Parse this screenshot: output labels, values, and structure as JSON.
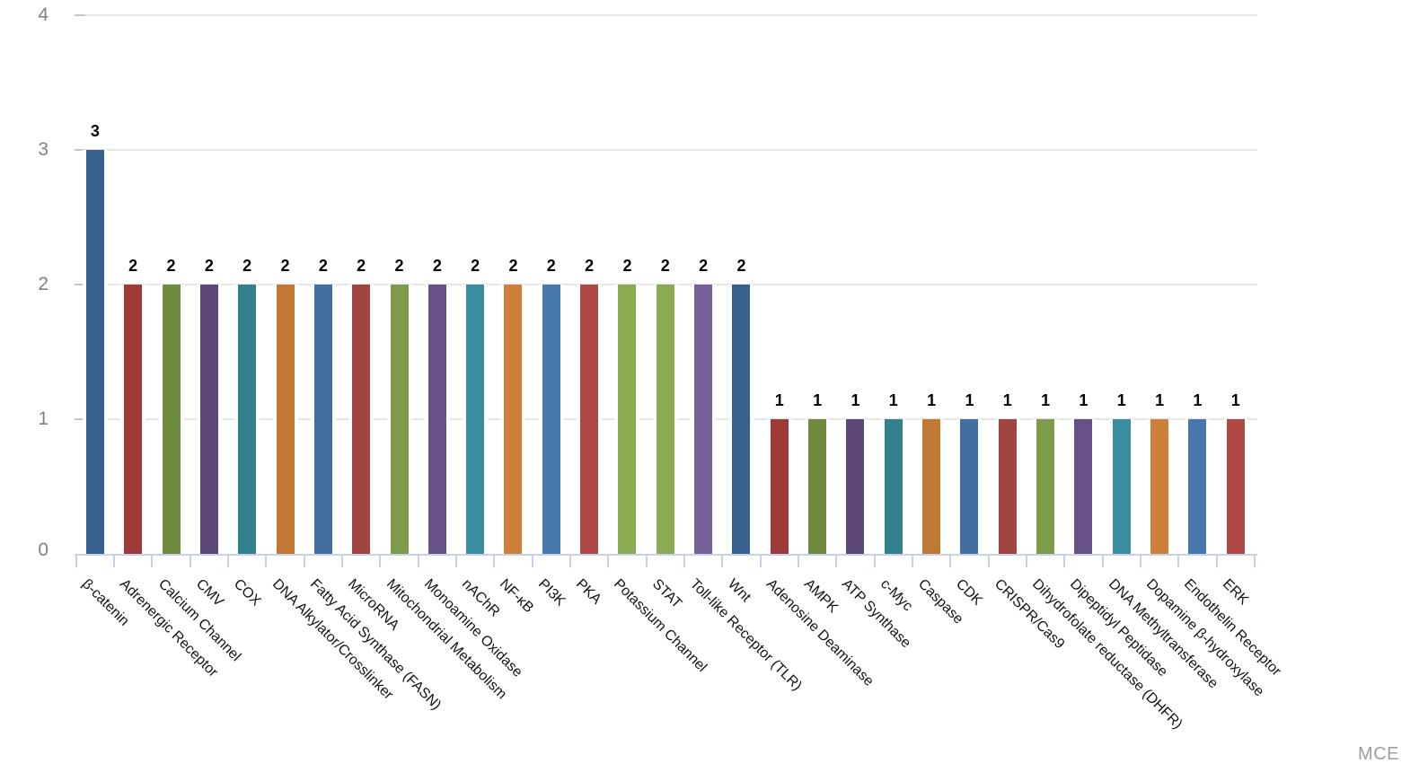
{
  "watermark": "MCE",
  "chart_data": {
    "type": "bar",
    "title": "",
    "xlabel": "",
    "ylabel": "",
    "ylim": [
      0,
      4
    ],
    "yticks": [
      0,
      1,
      2,
      3,
      4
    ],
    "grid": true,
    "legend": "none",
    "categories": [
      "β-catenin",
      "Adrenergic Receptor",
      "Calcium Channel",
      "CMV",
      "COX",
      "DNA Alkylator/Crosslinker",
      "Fatty Acid Synthase (FASN)",
      "MicroRNA",
      "Mitochondrial Metabolism",
      "Monoamine Oxidase",
      "nAChR",
      "NF-κB",
      "PI3K",
      "PKA",
      "Potassium Channel",
      "STAT",
      "Toll-like Receptor (TLR)",
      "Wnt",
      "Adenosine Deaminase",
      "AMPK",
      "ATP Synthase",
      "c-Myc",
      "Caspase",
      "CDK",
      "CRISPR/Cas9",
      "Dihydrofolate reductase (DHFR)",
      "Dipeptidyl Peptidase",
      "DNA Methyltransferase",
      "Dopamine β-hydroxylase",
      "Endothelin Receptor",
      "ERK"
    ],
    "values": [
      3,
      2,
      2,
      2,
      2,
      2,
      2,
      2,
      2,
      2,
      2,
      2,
      2,
      2,
      2,
      2,
      2,
      2,
      1,
      1,
      1,
      1,
      1,
      1,
      1,
      1,
      1,
      1,
      1,
      1,
      1
    ],
    "bar_colors": [
      "#36618e",
      "#9e3a38",
      "#6f8c3e",
      "#5c4776",
      "#31808f",
      "#c17833",
      "#4170a0",
      "#a24440",
      "#7d9c4a",
      "#685187",
      "#3a8da0",
      "#ce8038",
      "#4877ae",
      "#ad4a45",
      "#8aab52",
      "#8aab52",
      "#756097",
      "#36618e",
      "#9e3a38",
      "#6f8c3e",
      "#5c4776",
      "#31808f",
      "#c17833",
      "#4170a0",
      "#a24440",
      "#7d9c4a",
      "#685187",
      "#3a8da0",
      "#ce8038",
      "#4877ae",
      "#ad4a45"
    ],
    "value_label_color": "#000000",
    "gridline_color": "#e5e5e5",
    "axis_color": "#c9d1e8",
    "ytick_label_color": "#808080",
    "category_label_color": "#141414",
    "watermark_color": "#9e9e9e"
  }
}
